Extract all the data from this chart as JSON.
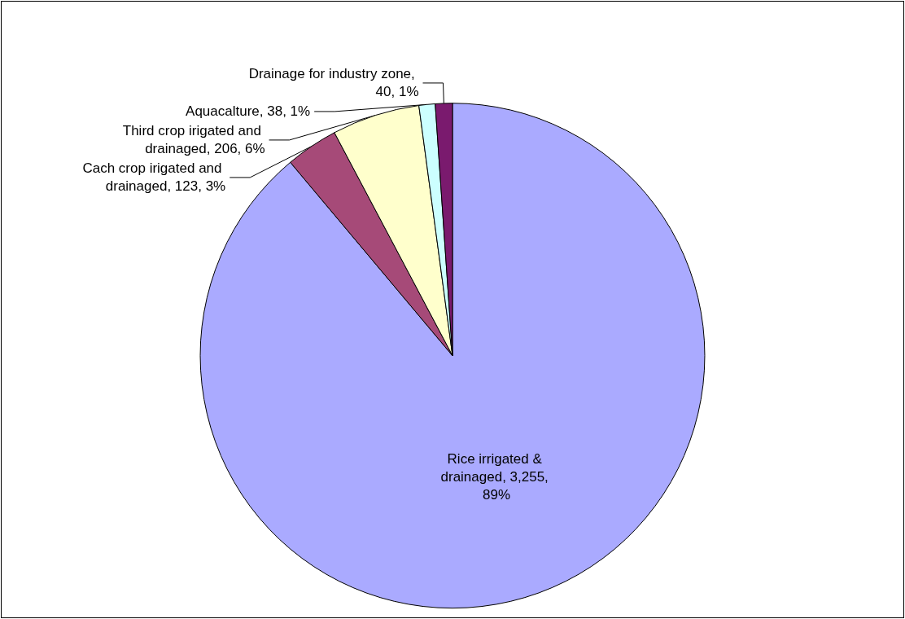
{
  "chart_data": {
    "type": "pie",
    "categories": [
      "Rice irrigated & drainaged, 3,255, 89%",
      "Cach crop irigated and drainaged, 123, 3%",
      "Third crop irigated and drainaged, 206, 6%",
      "Aquacalture, 38, 1%",
      "Drainage for industry zone, 40, 1%"
    ],
    "values": [
      3255,
      123,
      206,
      38,
      40
    ],
    "colors": [
      "#aaaaff",
      "#a64a78",
      "#ffffcc",
      "#ccffff",
      "#7a1a6e"
    ],
    "legend": false
  }
}
